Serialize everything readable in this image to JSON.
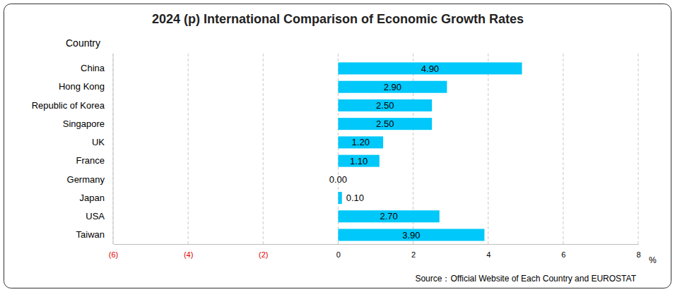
{
  "chart_data": {
    "type": "bar",
    "orientation": "horizontal",
    "title": "2024 (p) International Comparison of Economic Growth Rates",
    "y_label": "Country",
    "x_label": "%",
    "source": "Source：Official Website of Each Country and EUROSTAT",
    "categories": [
      "China",
      "Hong Kong",
      "Republic of Korea",
      "Singapore",
      "UK",
      "France",
      "Germany",
      "Japan",
      "USA",
      "Taiwan"
    ],
    "values": [
      4.9,
      2.9,
      2.5,
      2.5,
      1.2,
      1.1,
      0,
      0.1,
      2.7,
      3.9
    ],
    "value_labels": [
      "4.90",
      "2.90",
      "2.50",
      "2.50",
      "1.20",
      "1.10",
      "0.00",
      "0.10",
      "2.70",
      "3.90"
    ],
    "color": "#00c8fa",
    "xlim": [
      -6,
      8
    ],
    "xticks": [
      {
        "value": -6,
        "label": "(6)"
      },
      {
        "value": -4,
        "label": "(4)"
      },
      {
        "value": -2,
        "label": "(2)"
      },
      0,
      2,
      4,
      6,
      8
    ],
    "grid": true,
    "data_labels": true
  }
}
